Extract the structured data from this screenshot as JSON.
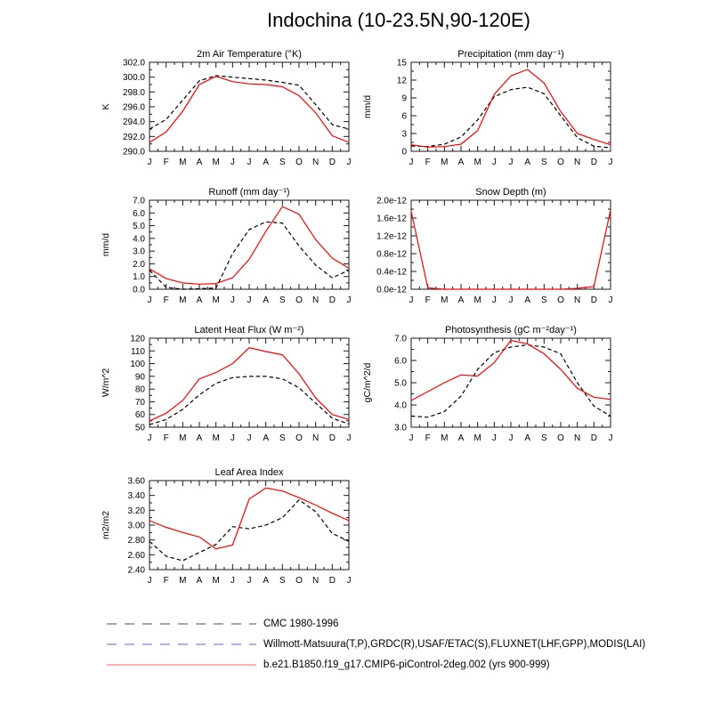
{
  "title": "Indochina (10-23.5N,90-120E)",
  "months": [
    "J",
    "F",
    "M",
    "A",
    "M",
    "J",
    "J",
    "A",
    "S",
    "O",
    "N",
    "D",
    "J"
  ],
  "colors": {
    "model_line": "#ff0000",
    "obs_line": "#000000",
    "axis": "#1a1a1a",
    "legend_gray": "#a6a6a6",
    "legend_blue": "#b0b0ee",
    "legend_red": "#ffb0b0"
  },
  "legend": [
    {
      "label": "CMC 1980-1996",
      "color": "#a6a6a6",
      "dashed": true
    },
    {
      "label": "Willmott-Matsuura(T,P),GRDC(R),USAF/ETAC(S),FLUXNET(LHF,GPP),MODIS(LAI)",
      "color": "#b0b0ee",
      "dashed": true
    },
    {
      "label": "b.e21.B1850.f19_g17.CMIP6-piControl-2deg.002 (yrs 900-999)",
      "color": "#ffb0b0",
      "dashed": false
    }
  ],
  "chart_data": [
    {
      "id": "air-temperature",
      "type": "line",
      "title": "2m Air Temperature (°K)",
      "ylabel": "K",
      "ylim": [
        290,
        302
      ],
      "ytick_labels": [
        "290.0",
        "292.0",
        "294.0",
        "296.0",
        "298.0",
        "300.0",
        "302.0"
      ],
      "categories": [
        "J",
        "F",
        "M",
        "A",
        "M",
        "J",
        "J",
        "A",
        "S",
        "O",
        "N",
        "D",
        "J"
      ],
      "series": [
        {
          "name": "observations",
          "color": "#000000",
          "dashed": true,
          "values": [
            293.0,
            294.3,
            296.9,
            299.5,
            300.2,
            300.0,
            299.8,
            299.6,
            299.3,
            298.9,
            296.3,
            293.6,
            293.0
          ]
        },
        {
          "name": "model",
          "color": "#ff0000",
          "dashed": false,
          "values": [
            291.2,
            292.6,
            295.4,
            299.0,
            300.1,
            299.4,
            299.1,
            299.0,
            298.7,
            297.5,
            295.2,
            292.1,
            291.2
          ]
        }
      ]
    },
    {
      "id": "precipitation",
      "type": "line",
      "title": "Precipitation (mm day⁻¹)",
      "ylabel": "mm/d",
      "ylim": [
        0,
        15
      ],
      "ytick_labels": [
        "0",
        "3",
        "6",
        "9",
        "12",
        "15"
      ],
      "categories": [
        "J",
        "F",
        "M",
        "A",
        "M",
        "J",
        "J",
        "A",
        "S",
        "O",
        "N",
        "D",
        "J"
      ],
      "series": [
        {
          "name": "observations",
          "color": "#000000",
          "dashed": true,
          "values": [
            0.9,
            0.8,
            1.2,
            2.4,
            5.3,
            9.2,
            10.4,
            10.8,
            9.7,
            6.0,
            2.3,
            0.85,
            0.6
          ]
        },
        {
          "name": "model",
          "color": "#ff0000",
          "dashed": false,
          "values": [
            1.1,
            0.7,
            0.8,
            1.2,
            3.5,
            9.6,
            12.7,
            13.8,
            11.5,
            6.7,
            3.0,
            2.0,
            1.1
          ]
        }
      ]
    },
    {
      "id": "runoff",
      "type": "line",
      "title": "Runoff (mm day⁻¹)",
      "ylabel": "mm/d",
      "ylim": [
        0,
        7
      ],
      "ytick_labels": [
        "0.0",
        "1.0",
        "2.0",
        "3.0",
        "4.0",
        "5.0",
        "6.0",
        "7.0"
      ],
      "categories": [
        "J",
        "F",
        "M",
        "A",
        "M",
        "J",
        "J",
        "A",
        "S",
        "O",
        "N",
        "D",
        "J"
      ],
      "series": [
        {
          "name": "observations",
          "color": "#000000",
          "dashed": true,
          "values": [
            1.5,
            0.15,
            0.0,
            0.05,
            0.1,
            2.8,
            4.7,
            5.3,
            5.2,
            3.4,
            1.9,
            0.9,
            1.5
          ]
        },
        {
          "name": "model",
          "color": "#ff0000",
          "dashed": false,
          "values": [
            1.6,
            0.85,
            0.5,
            0.4,
            0.45,
            0.9,
            2.35,
            4.55,
            6.5,
            5.9,
            3.9,
            2.45,
            1.65
          ]
        }
      ]
    },
    {
      "id": "snow-depth",
      "type": "line",
      "title": "Snow Depth (m)",
      "ylabel": "",
      "ylim": [
        0,
        2e-12
      ],
      "ytick_labels": [
        "0.0e-12",
        "0.4e-12",
        "0.8e-12",
        "1.2e-12",
        "1.6e-12",
        "2.0e-12"
      ],
      "categories": [
        "J",
        "F",
        "M",
        "A",
        "M",
        "J",
        "J",
        "A",
        "S",
        "O",
        "N",
        "D",
        "J"
      ],
      "series": [
        {
          "name": "model",
          "color": "#ff0000",
          "dashed": false,
          "values": [
            1.75e-12,
            3e-14,
            0,
            0,
            0,
            0,
            0,
            0,
            0,
            0,
            2e-14,
            6e-14,
            1.78e-12
          ]
        }
      ]
    },
    {
      "id": "latent-heat-flux",
      "type": "line",
      "title": "Latent Heat Flux (W m⁻²)",
      "ylabel": "W/m^2",
      "ylim": [
        50,
        120
      ],
      "ytick_labels": [
        "50",
        "60",
        "70",
        "80",
        "90",
        "100",
        "110",
        "120"
      ],
      "categories": [
        "J",
        "F",
        "M",
        "A",
        "M",
        "J",
        "J",
        "A",
        "S",
        "O",
        "N",
        "D",
        "J"
      ],
      "series": [
        {
          "name": "observations",
          "color": "#000000",
          "dashed": true,
          "values": [
            52,
            56,
            64,
            75.5,
            84.5,
            89,
            90,
            90,
            88,
            81,
            69,
            57,
            52.5
          ]
        },
        {
          "name": "model",
          "color": "#ff0000",
          "dashed": false,
          "values": [
            55,
            61,
            71,
            88,
            93,
            100,
            112.5,
            109.5,
            107,
            92,
            73,
            60,
            56
          ]
        }
      ]
    },
    {
      "id": "photosynthesis",
      "type": "line",
      "title": "Photosynthesis (gC m⁻²day⁻¹)",
      "ylabel": "gC/m^2/d",
      "ylim": [
        3,
        7
      ],
      "ytick_labels": [
        "3.0",
        "4.0",
        "5.0",
        "6.0",
        "7.0"
      ],
      "categories": [
        "J",
        "F",
        "M",
        "A",
        "M",
        "J",
        "J",
        "A",
        "S",
        "O",
        "N",
        "D",
        "J"
      ],
      "series": [
        {
          "name": "observations",
          "color": "#000000",
          "dashed": true,
          "values": [
            3.5,
            3.45,
            3.7,
            4.4,
            5.6,
            6.35,
            6.6,
            6.7,
            6.6,
            6.3,
            5.0,
            3.95,
            3.5
          ]
        },
        {
          "name": "model",
          "color": "#ff0000",
          "dashed": false,
          "values": [
            4.2,
            4.6,
            5.0,
            5.35,
            5.3,
            5.9,
            6.9,
            6.75,
            6.3,
            5.6,
            4.75,
            4.35,
            4.25
          ]
        }
      ]
    },
    {
      "id": "leaf-area-index",
      "type": "line",
      "title": "Leaf Area Index",
      "ylabel": "m2/m2",
      "ylim": [
        2.4,
        3.6
      ],
      "ytick_labels": [
        "2.40",
        "2.60",
        "2.80",
        "3.00",
        "3.20",
        "3.40",
        "3.60"
      ],
      "categories": [
        "J",
        "F",
        "M",
        "A",
        "M",
        "J",
        "J",
        "A",
        "S",
        "O",
        "N",
        "D",
        "J"
      ],
      "series": [
        {
          "name": "observations",
          "color": "#000000",
          "dashed": true,
          "values": [
            2.78,
            2.58,
            2.52,
            2.63,
            2.74,
            2.98,
            2.95,
            3.0,
            3.1,
            3.34,
            3.18,
            2.89,
            2.78
          ]
        },
        {
          "name": "model",
          "color": "#ff0000",
          "dashed": false,
          "values": [
            3.06,
            2.97,
            2.9,
            2.84,
            2.68,
            2.73,
            3.35,
            3.5,
            3.46,
            3.37,
            3.27,
            3.16,
            3.06
          ]
        }
      ]
    }
  ]
}
